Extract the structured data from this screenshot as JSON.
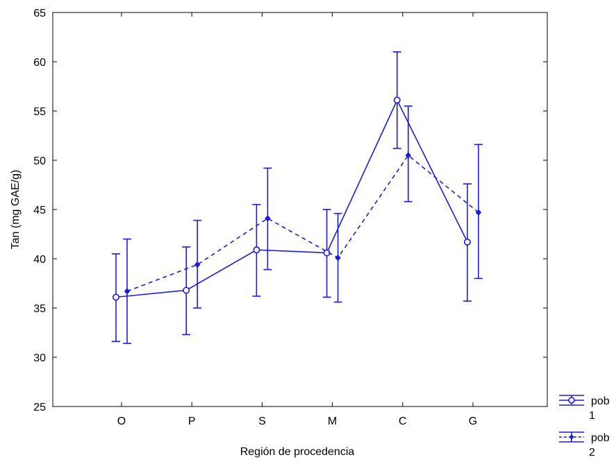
{
  "chart_data": {
    "type": "line",
    "xlabel": "Región de procedencia",
    "ylabel": "Tan (mg GAE/g)",
    "categories": [
      "O",
      "P",
      "S",
      "M",
      "C",
      "G"
    ],
    "ylim": [
      25,
      65
    ],
    "yticks": [
      25,
      30,
      35,
      40,
      45,
      50,
      55,
      60,
      65
    ],
    "grid": false,
    "legend_position": "bottom-right",
    "color": "#1a1ae6",
    "series": [
      {
        "name": "pob 1",
        "line_style": "solid",
        "marker": "open-circle",
        "values": [
          36.1,
          36.8,
          40.9,
          40.6,
          56.1,
          41.7
        ],
        "lower": [
          31.6,
          32.3,
          36.2,
          36.1,
          51.2,
          35.7
        ],
        "upper": [
          40.5,
          41.2,
          45.5,
          45.0,
          61.0,
          47.6
        ]
      },
      {
        "name": "pob 2",
        "line_style": "dashed",
        "marker": "filled-diamond",
        "values": [
          36.7,
          39.4,
          44.1,
          40.1,
          50.5,
          44.7
        ],
        "lower": [
          31.4,
          35.0,
          38.9,
          35.6,
          45.8,
          38.0
        ],
        "upper": [
          42.0,
          43.9,
          49.2,
          44.6,
          55.5,
          51.6
        ]
      }
    ]
  }
}
